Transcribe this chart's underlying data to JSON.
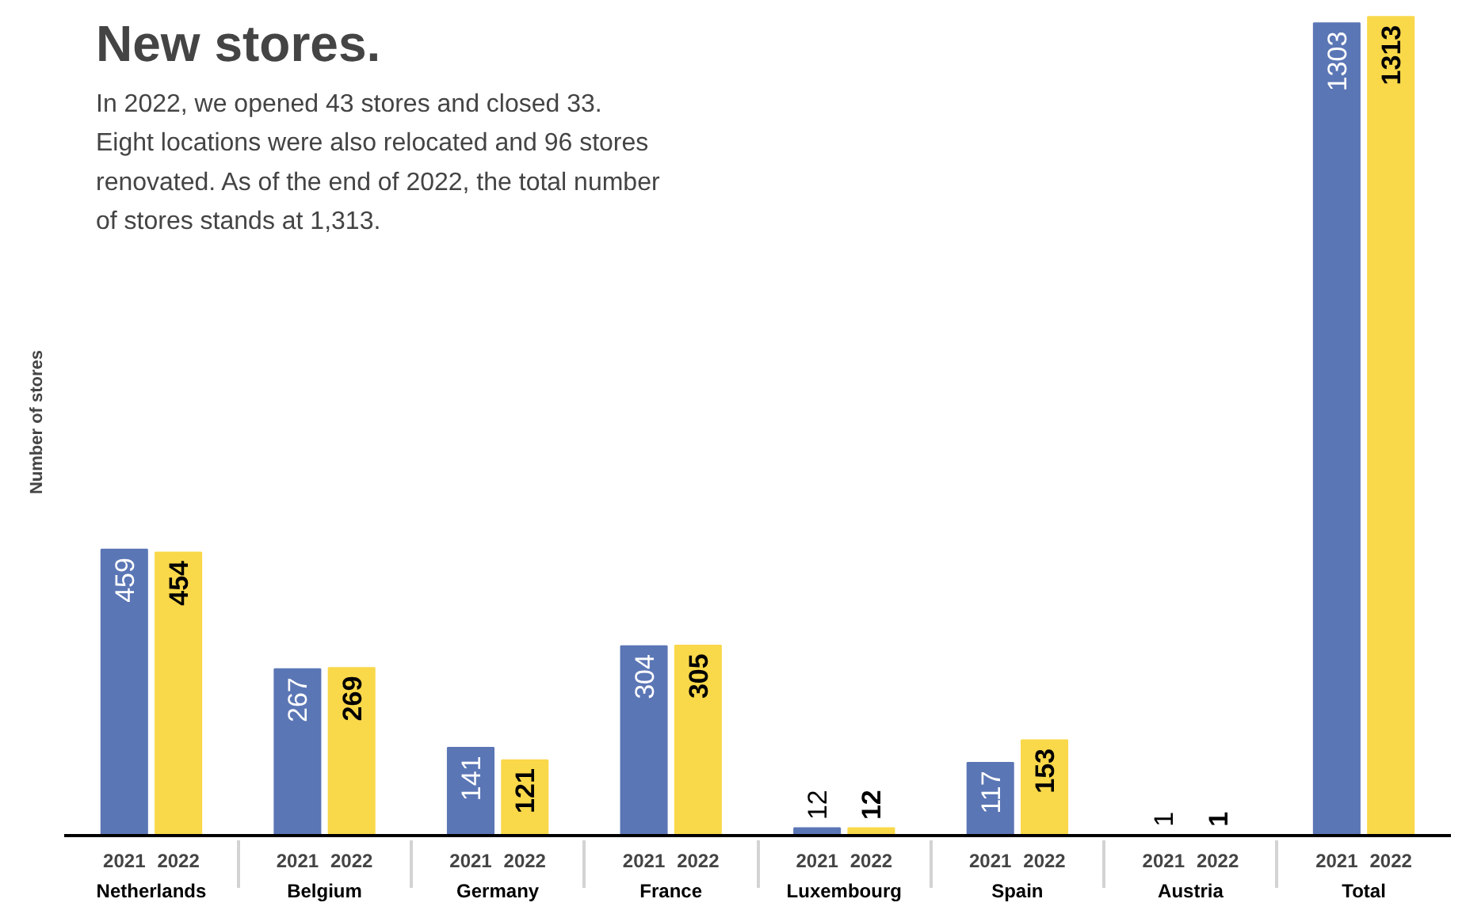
{
  "chart_data": {
    "type": "bar",
    "title": "New stores.",
    "subtitle": "In 2022, we opened 43 stores and closed 33.\nEight locations were also relocated and 96 stores\nrenovated. As of the end of 2022, the total number\nof stores stands at 1,313.",
    "ylabel": "Number of stores",
    "categories": [
      "Netherlands",
      "Belgium",
      "Germany",
      "France",
      "Luxembourg",
      "Spain",
      "Austria",
      "Total"
    ],
    "series": [
      {
        "name": "2021",
        "color": "#5b76b5",
        "values": [
          459,
          267,
          141,
          304,
          12,
          117,
          1,
          1303
        ]
      },
      {
        "name": "2022",
        "color": "#f9d84a",
        "values": [
          454,
          269,
          121,
          305,
          12,
          153,
          1,
          1313
        ]
      }
    ],
    "data_labels": true,
    "tick_labels": "x",
    "grid": false,
    "legend": false
  }
}
